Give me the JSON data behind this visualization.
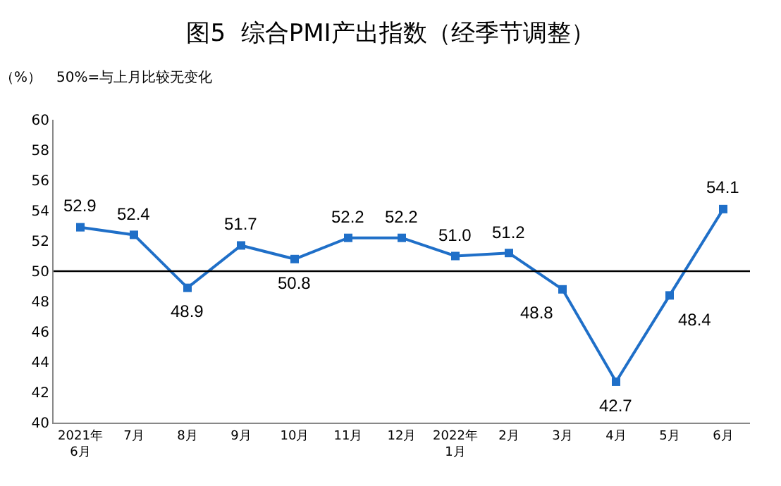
{
  "chart_data": {
    "type": "line",
    "title": "图5  综合PMI产出指数（经季节调整）",
    "annotations": [
      "（%）",
      "50%=与上月比较无变化"
    ],
    "categories": [
      "2021年\n6月",
      "7月",
      "8月",
      "9月",
      "10月",
      "11月",
      "12月",
      "2022年\n1月",
      "2月",
      "3月",
      "4月",
      "5月",
      "6月"
    ],
    "series": [
      {
        "color": "#1f6fc8",
        "values": [
          52.9,
          52.4,
          48.9,
          51.7,
          50.8,
          52.2,
          52.2,
          51.0,
          51.2,
          48.8,
          42.7,
          48.4,
          54.1
        ],
        "value_labels": [
          "52.9",
          "52.4",
          "48.9",
          "51.7",
          "50.8",
          "52.2",
          "52.2",
          "51.0",
          "51.2",
          "48.8",
          "42.7",
          "48.4",
          "54.1"
        ]
      }
    ],
    "ylim": [
      40,
      60
    ],
    "yticks": [
      40,
      42,
      44,
      46,
      48,
      50,
      52,
      54,
      56,
      58,
      60
    ],
    "ref_lines": [
      {
        "axis": "y",
        "value": 50,
        "color": "#000000"
      }
    ],
    "grid": false,
    "marker": "square",
    "line_style": "solid"
  }
}
